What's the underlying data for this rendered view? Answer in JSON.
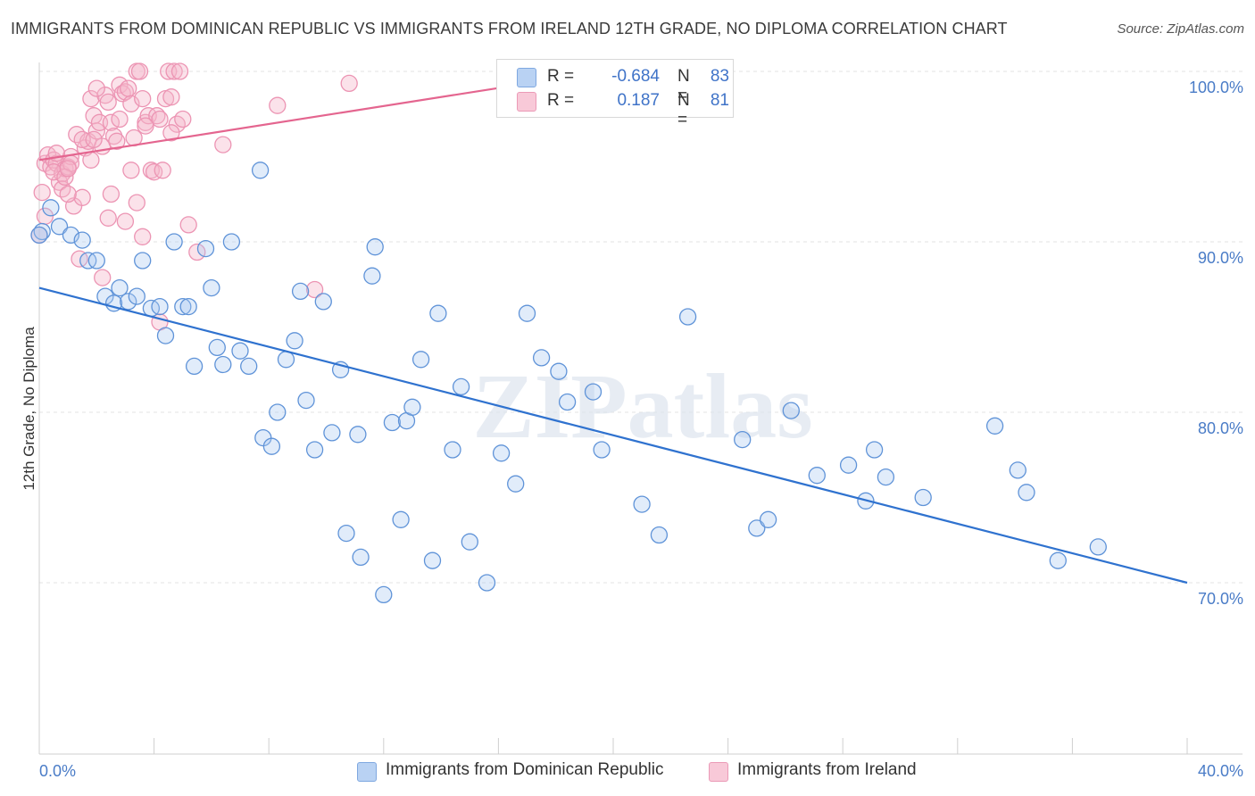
{
  "title": "IMMIGRANTS FROM DOMINICAN REPUBLIC VS IMMIGRANTS FROM IRELAND 12TH GRADE, NO DIPLOMA CORRELATION CHART",
  "source": "Source: ZipAtlas.com",
  "watermark": "ZIPatlas",
  "colors": {
    "blue": "#4a86d8",
    "blue_fill": "#a9c8f0",
    "pink": "#e8709a",
    "pink_fill": "#f4b6cb",
    "axis_tick": "#4a7cc7",
    "grid": "#e3e3e3"
  },
  "legend_top": {
    "rows": [
      {
        "r_label": "R =",
        "r_value": "-0.684",
        "n_label": "N =",
        "n_value": "83"
      },
      {
        "r_label": "R =",
        "r_value": "0.187",
        "n_label": "N =",
        "n_value": "81"
      }
    ]
  },
  "legend_bottom": {
    "items": [
      "Immigrants from Dominican Republic",
      "Immigrants from Ireland"
    ]
  },
  "chart_data": {
    "type": "scatter",
    "title": "IMMIGRANTS FROM DOMINICAN REPUBLIC VS IMMIGRANTS FROM IRELAND 12TH GRADE, NO DIPLOMA CORRELATION CHART",
    "xlabel": "",
    "ylabel": "12th Grade, No Diploma",
    "xlim": [
      0,
      40
    ],
    "ylim": [
      60,
      100
    ],
    "x_ticks": [
      "0.0%",
      "40.0%"
    ],
    "y_ticks": [
      "100.0%",
      "90.0%",
      "80.0%",
      "70.0%"
    ],
    "y_tick_values": [
      100,
      90,
      80,
      70
    ],
    "grid": true,
    "legend_position": "bottom",
    "series": [
      {
        "name": "Immigrants from Dominican Republic",
        "color": "#4a86d8",
        "trend": {
          "x": [
            0,
            40
          ],
          "y": [
            87.3,
            70.0
          ]
        },
        "points": [
          [
            0.1,
            90.6
          ],
          [
            0.4,
            92.0
          ],
          [
            0.7,
            90.9
          ],
          [
            1.1,
            90.4
          ],
          [
            1.5,
            90.1
          ],
          [
            1.7,
            88.9
          ],
          [
            2.0,
            88.9
          ],
          [
            2.3,
            86.8
          ],
          [
            2.6,
            86.4
          ],
          [
            2.8,
            87.3
          ],
          [
            3.1,
            86.5
          ],
          [
            3.4,
            86.8
          ],
          [
            3.6,
            88.9
          ],
          [
            3.9,
            86.1
          ],
          [
            4.2,
            86.2
          ],
          [
            4.4,
            84.5
          ],
          [
            4.7,
            90.0
          ],
          [
            5.0,
            86.2
          ],
          [
            5.2,
            86.2
          ],
          [
            5.4,
            82.7
          ],
          [
            5.8,
            89.6
          ],
          [
            6.0,
            87.3
          ],
          [
            6.2,
            83.8
          ],
          [
            6.4,
            82.8
          ],
          [
            6.7,
            90.0
          ],
          [
            7.0,
            83.6
          ],
          [
            7.3,
            82.7
          ],
          [
            7.7,
            94.2
          ],
          [
            7.8,
            78.5
          ],
          [
            8.1,
            78.0
          ],
          [
            8.3,
            80.0
          ],
          [
            8.6,
            83.1
          ],
          [
            8.9,
            84.2
          ],
          [
            9.1,
            87.1
          ],
          [
            9.3,
            80.7
          ],
          [
            9.6,
            77.8
          ],
          [
            9.9,
            86.5
          ],
          [
            10.2,
            78.8
          ],
          [
            10.5,
            82.5
          ],
          [
            10.7,
            72.9
          ],
          [
            11.1,
            78.7
          ],
          [
            11.2,
            71.5
          ],
          [
            11.6,
            88.0
          ],
          [
            11.7,
            89.7
          ],
          [
            12.0,
            69.3
          ],
          [
            12.3,
            79.4
          ],
          [
            12.6,
            73.7
          ],
          [
            12.8,
            79.5
          ],
          [
            13.0,
            80.3
          ],
          [
            13.3,
            83.1
          ],
          [
            13.7,
            71.3
          ],
          [
            13.9,
            85.8
          ],
          [
            14.4,
            77.8
          ],
          [
            14.7,
            81.5
          ],
          [
            15.0,
            72.4
          ],
          [
            15.6,
            70.0
          ],
          [
            16.1,
            77.6
          ],
          [
            16.6,
            75.8
          ],
          [
            17.0,
            85.8
          ],
          [
            17.5,
            83.2
          ],
          [
            18.1,
            82.4
          ],
          [
            18.4,
            80.6
          ],
          [
            19.3,
            81.2
          ],
          [
            19.6,
            77.8
          ],
          [
            21.0,
            74.6
          ],
          [
            21.6,
            72.8
          ],
          [
            22.6,
            85.6
          ],
          [
            24.5,
            78.4
          ],
          [
            25.0,
            73.2
          ],
          [
            25.4,
            73.7
          ],
          [
            26.2,
            80.1
          ],
          [
            27.1,
            76.3
          ],
          [
            28.2,
            76.9
          ],
          [
            28.8,
            74.8
          ],
          [
            29.1,
            77.8
          ],
          [
            29.5,
            76.2
          ],
          [
            30.8,
            75.0
          ],
          [
            33.3,
            79.2
          ],
          [
            34.1,
            76.6
          ],
          [
            34.4,
            75.3
          ],
          [
            35.5,
            71.3
          ],
          [
            36.9,
            72.1
          ],
          [
            0.0,
            90.4
          ]
        ]
      },
      {
        "name": "Immigrants from Ireland",
        "color": "#e8709a",
        "trend": {
          "x": [
            0,
            19.7
          ],
          "y": [
            94.8,
            100.0
          ]
        },
        "points": [
          [
            0.0,
            90.4
          ],
          [
            0.1,
            92.9
          ],
          [
            0.2,
            94.6
          ],
          [
            0.3,
            95.1
          ],
          [
            0.4,
            94.4
          ],
          [
            0.5,
            94.8
          ],
          [
            0.6,
            94.6
          ],
          [
            0.7,
            93.5
          ],
          [
            0.8,
            94.0
          ],
          [
            0.8,
            93.1
          ],
          [
            0.9,
            94.3
          ],
          [
            1.0,
            94.4
          ],
          [
            1.1,
            95.0
          ],
          [
            1.2,
            92.1
          ],
          [
            1.3,
            96.3
          ],
          [
            1.4,
            89.0
          ],
          [
            1.5,
            92.6
          ],
          [
            1.6,
            95.5
          ],
          [
            1.7,
            95.9
          ],
          [
            1.8,
            98.4
          ],
          [
            1.9,
            97.4
          ],
          [
            2.0,
            96.5
          ],
          [
            2.1,
            97.0
          ],
          [
            2.2,
            95.6
          ],
          [
            2.3,
            98.6
          ],
          [
            2.4,
            98.2
          ],
          [
            2.5,
            97.0
          ],
          [
            2.6,
            96.2
          ],
          [
            2.7,
            95.9
          ],
          [
            2.8,
            99.2
          ],
          [
            2.9,
            98.7
          ],
          [
            3.0,
            98.8
          ],
          [
            3.1,
            99.0
          ],
          [
            3.2,
            98.1
          ],
          [
            3.3,
            96.1
          ],
          [
            3.4,
            100.0
          ],
          [
            3.5,
            100.0
          ],
          [
            3.6,
            98.4
          ],
          [
            3.7,
            97.0
          ],
          [
            3.8,
            97.4
          ],
          [
            3.9,
            94.2
          ],
          [
            4.0,
            94.1
          ],
          [
            4.1,
            97.4
          ],
          [
            4.2,
            97.2
          ],
          [
            4.3,
            94.2
          ],
          [
            4.4,
            98.4
          ],
          [
            4.5,
            100.0
          ],
          [
            4.6,
            98.5
          ],
          [
            4.7,
            100.0
          ],
          [
            4.8,
            96.9
          ],
          [
            4.9,
            100.0
          ],
          [
            5.0,
            97.2
          ],
          [
            5.2,
            91.0
          ],
          [
            5.5,
            89.4
          ],
          [
            6.4,
            95.7
          ],
          [
            8.3,
            98.0
          ],
          [
            9.6,
            87.2
          ],
          [
            10.8,
            99.3
          ],
          [
            2.5,
            92.8
          ],
          [
            2.4,
            91.4
          ],
          [
            3.0,
            91.2
          ],
          [
            3.4,
            92.3
          ],
          [
            3.6,
            90.3
          ],
          [
            4.2,
            85.3
          ],
          [
            1.0,
            92.8
          ],
          [
            0.2,
            91.5
          ],
          [
            0.6,
            95.2
          ],
          [
            1.8,
            94.8
          ],
          [
            2.2,
            87.9
          ],
          [
            1.1,
            94.6
          ],
          [
            2.0,
            99.0
          ],
          [
            1.5,
            96.0
          ],
          [
            3.2,
            94.2
          ],
          [
            0.5,
            94.1
          ],
          [
            0.9,
            93.8
          ],
          [
            2.8,
            97.2
          ],
          [
            4.6,
            96.4
          ],
          [
            3.7,
            96.8
          ],
          [
            1.9,
            96.0
          ],
          [
            1.0,
            94.3
          ],
          [
            19.2,
            100.0
          ]
        ]
      }
    ]
  }
}
